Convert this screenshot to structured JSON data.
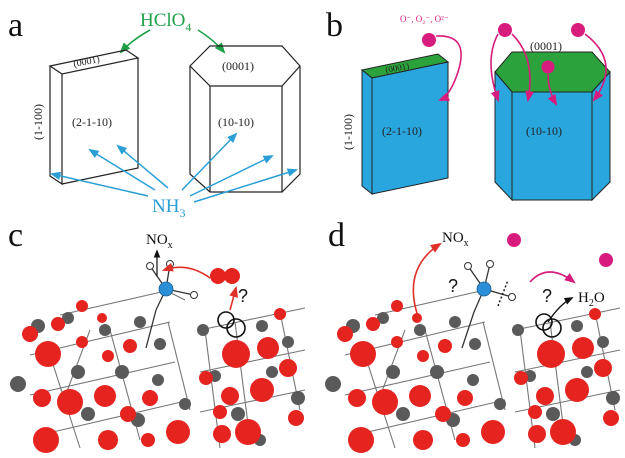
{
  "panels": {
    "a": {
      "letter": "a",
      "reagent": "HClO",
      "reagent_sub": "4",
      "facets": {
        "top_left": "(0001)",
        "top_right": "(0001)",
        "side": "(1-100)",
        "face_left": "(2-1-10)",
        "face_right": "(10-10)"
      },
      "base": "NH",
      "base_sub": "3"
    },
    "b": {
      "letter": "b",
      "species": "O⁻, O₂⁻, O²⁻",
      "facets": {
        "top_left": "(0001)",
        "top_right": "(0001)",
        "side": "(1-100)",
        "face_left": "(2-1-10)",
        "face_right": "(10-10)"
      }
    },
    "c": {
      "letter": "c",
      "product": "NO",
      "product_sub": "x",
      "question": "?"
    },
    "d": {
      "letter": "d",
      "product": "NO",
      "product_sub": "x",
      "question_left": "?",
      "question_right": "?",
      "water": "H",
      "water_sub": "2",
      "water_tail": "O"
    }
  },
  "colors": {
    "hclo4_arrow": "#1fa14a",
    "nh3_arrow": "#2a9fd6",
    "crystal_fill": "#2aa6df",
    "crystal_top": "#2ca23c",
    "radical": "#d81c7d",
    "oxygen": "#e52420",
    "metal": "#5a5a5a",
    "nitrogen": "#2a8fd6",
    "reaction_arrow": "#e0302a",
    "species_label": "#d81c7d"
  }
}
